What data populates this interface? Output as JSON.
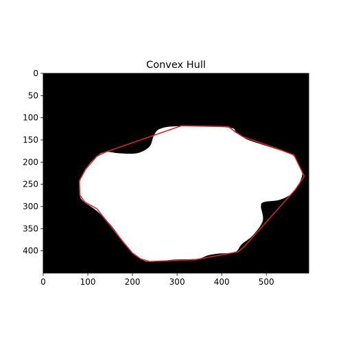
{
  "chart_data": {
    "type": "image",
    "title": "Convex Hull",
    "xlabel": "",
    "ylabel": "",
    "xlim": [
      0,
      595
    ],
    "ylim": [
      450,
      0
    ],
    "x_ticks": [
      0,
      100,
      200,
      300,
      400,
      500
    ],
    "y_ticks": [
      0,
      50,
      100,
      150,
      200,
      250,
      300,
      350,
      400
    ],
    "grid": false,
    "background_color": "#000000",
    "shape_color": "#ffffff",
    "hull_color": "#d62728",
    "shape_outline": [
      [
        303,
        119
      ],
      [
        415,
        122
      ],
      [
        432,
        133
      ],
      [
        448,
        144
      ],
      [
        465,
        152
      ],
      [
        520,
        170
      ],
      [
        560,
        185
      ],
      [
        575,
        212
      ],
      [
        580,
        232
      ],
      [
        560,
        268
      ],
      [
        530,
        285
      ],
      [
        495,
        290
      ],
      [
        488,
        300
      ],
      [
        492,
        332
      ],
      [
        470,
        365
      ],
      [
        445,
        385
      ],
      [
        430,
        403
      ],
      [
        395,
        406
      ],
      [
        370,
        410
      ],
      [
        345,
        418
      ],
      [
        290,
        420
      ],
      [
        240,
        425
      ],
      [
        218,
        418
      ],
      [
        200,
        405
      ],
      [
        180,
        380
      ],
      [
        150,
        340
      ],
      [
        120,
        310
      ],
      [
        92,
        290
      ],
      [
        82,
        275
      ],
      [
        82,
        245
      ],
      [
        95,
        215
      ],
      [
        122,
        185
      ],
      [
        142,
        177
      ],
      [
        170,
        180
      ],
      [
        210,
        180
      ],
      [
        238,
        165
      ],
      [
        248,
        140
      ],
      [
        262,
        125
      ]
    ],
    "hull": [
      [
        310,
        118
      ],
      [
        415,
        120
      ],
      [
        432,
        133
      ],
      [
        448,
        143
      ],
      [
        520,
        168
      ],
      [
        562,
        184
      ],
      [
        578,
        217
      ],
      [
        585,
        232
      ],
      [
        565,
        262
      ],
      [
        450,
        391
      ],
      [
        437,
        402
      ],
      [
        340,
        420
      ],
      [
        238,
        424
      ],
      [
        218,
        418
      ],
      [
        200,
        405
      ],
      [
        180,
        381
      ],
      [
        120,
        305
      ],
      [
        93,
        290
      ],
      [
        82,
        274
      ],
      [
        81,
        242
      ],
      [
        95,
        216
      ],
      [
        120,
        187
      ],
      [
        140,
        177
      ]
    ]
  }
}
